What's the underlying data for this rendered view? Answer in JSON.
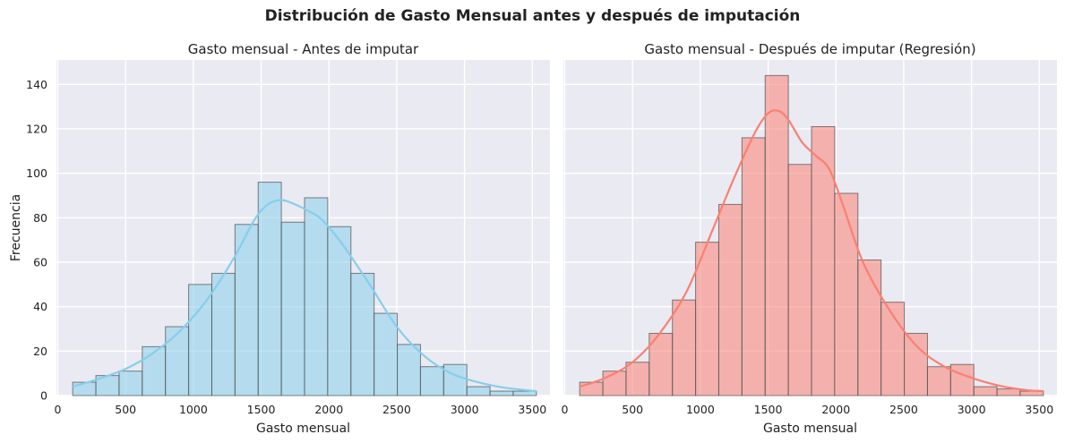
{
  "figure_title": "Distribución de Gasto Mensual antes y después de imputación",
  "chart_data": [
    {
      "type": "bar",
      "subtype": "histogram_with_kde",
      "title": "Gasto mensual - Antes de imputar",
      "xlabel": "Gasto mensual",
      "ylabel": "Frecuencia",
      "xlim": [
        -10,
        3630
      ],
      "ylim": [
        0,
        151
      ],
      "xticks": [
        0,
        500,
        1000,
        1500,
        2000,
        2500,
        3000,
        3500
      ],
      "yticks": [
        0,
        20,
        40,
        60,
        80,
        100,
        120,
        140
      ],
      "grid": true,
      "bin_edges": [
        110,
        281,
        452,
        623,
        794,
        965,
        1136,
        1307,
        1478,
        1649,
        1820,
        1991,
        2162,
        2333,
        2504,
        2675,
        2846,
        3017,
        3188,
        3359,
        3530
      ],
      "counts": [
        6,
        9,
        11,
        22,
        31,
        50,
        55,
        77,
        96,
        78,
        89,
        76,
        55,
        37,
        23,
        13,
        14,
        4,
        2,
        2
      ],
      "kde": {
        "x": [
          110,
          300,
          500,
          700,
          900,
          1100,
          1300,
          1450,
          1550,
          1650,
          1750,
          1850,
          1950,
          2100,
          2300,
          2500,
          2700,
          2900,
          3100,
          3300,
          3530
        ],
        "y": [
          4,
          7.5,
          12,
          19,
          29,
          43,
          62,
          79,
          86,
          88,
          86,
          83,
          79,
          68,
          50,
          31,
          18,
          10,
          6,
          3.5,
          2
        ]
      },
      "color": "#87ceeb",
      "line_color": "#87ceeb"
    },
    {
      "type": "bar",
      "subtype": "histogram_with_kde",
      "title": "Gasto mensual - Después de imputar (Regresión)",
      "xlabel": "Gasto mensual",
      "ylabel": "",
      "xlim": [
        -10,
        3630
      ],
      "ylim": [
        0,
        151
      ],
      "xticks": [
        0,
        500,
        1000,
        1500,
        2000,
        2500,
        3000,
        3500
      ],
      "yticks": [
        0,
        20,
        40,
        60,
        80,
        100,
        120,
        140
      ],
      "grid": true,
      "bin_edges": [
        110,
        281,
        452,
        623,
        794,
        965,
        1136,
        1307,
        1478,
        1649,
        1820,
        1991,
        2162,
        2333,
        2504,
        2675,
        2846,
        3017,
        3188,
        3359,
        3530
      ],
      "counts": [
        6,
        11,
        15,
        28,
        43,
        69,
        86,
        116,
        144,
        104,
        121,
        91,
        61,
        42,
        28,
        13,
        14,
        4,
        3,
        2
      ],
      "kde": {
        "x": [
          110,
          300,
          500,
          700,
          900,
          1100,
          1250,
          1400,
          1500,
          1580,
          1650,
          1750,
          1850,
          1950,
          2050,
          2200,
          2400,
          2600,
          2800,
          3000,
          3200,
          3400,
          3530
        ],
        "y": [
          4,
          8,
          15,
          28,
          47,
          76,
          98,
          118,
          127,
          128,
          124,
          114,
          108,
          102,
          86,
          60,
          38,
          22,
          13,
          8,
          4.5,
          2.5,
          2
        ]
      },
      "color": "#fa8072",
      "line_color": "#fa8072"
    }
  ]
}
